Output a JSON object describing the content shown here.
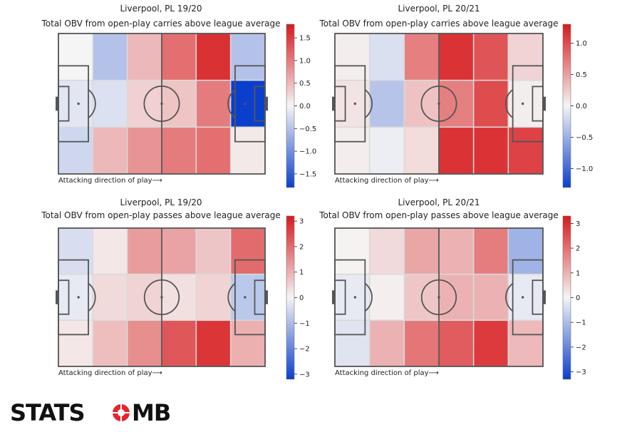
{
  "chart_data": [
    {
      "type": "heatmap",
      "title": "Liverpool, PL 19/20",
      "subtitle": "Total OBV from open-play carries above league average",
      "caption": "Attacking direction of play⟶",
      "grid_rows": 3,
      "grid_cols": 6,
      "values": [
        [
          0.0,
          -0.5,
          0.5,
          1.1,
          1.6,
          -0.5
        ],
        [
          -0.15,
          -0.2,
          0.3,
          0.4,
          1.0,
          -1.8
        ],
        [
          -0.3,
          0.5,
          0.8,
          1.0,
          1.1,
          0.1
        ]
      ],
      "colorbar": {
        "range": [
          -1.8,
          1.8
        ],
        "ticks": [
          1.5,
          1.0,
          0.5,
          0.0,
          -0.5,
          -1.0,
          -1.5
        ],
        "tick_labels": [
          "1.5",
          "1.0",
          "0.5",
          "0.0",
          "−0.5",
          "−1.0",
          "−1.5"
        ]
      }
    },
    {
      "type": "heatmap",
      "title": "Liverpool, PL 20/21",
      "subtitle": "Total OBV from open-play carries above league average",
      "caption": "Attacking direction of play⟶",
      "grid_rows": 3,
      "grid_cols": 6,
      "values": [
        [
          0.05,
          -0.15,
          0.7,
          1.15,
          0.95,
          0.2
        ],
        [
          0.1,
          -0.35,
          0.3,
          0.7,
          1.0,
          0.05
        ],
        [
          0.05,
          -0.05,
          0.15,
          1.15,
          1.15,
          1.05
        ]
      ],
      "colorbar": {
        "range": [
          -1.3,
          1.3
        ],
        "ticks": [
          1.0,
          0.5,
          0.0,
          -0.5,
          -1.0
        ],
        "tick_labels": [
          "1.0",
          "0.5",
          "0.0",
          "−0.5",
          "−1.0"
        ]
      }
    },
    {
      "type": "heatmap",
      "title": "Liverpool, PL 19/20",
      "subtitle": "Total OBV from open-play passes above league average",
      "caption": "Attacking direction of play⟶",
      "grid_rows": 3,
      "grid_cols": 6,
      "values": [
        [
          -0.4,
          0.2,
          1.3,
          1.2,
          0.7,
          2.0
        ],
        [
          -0.2,
          0.4,
          0.5,
          0.3,
          0.5,
          -0.8
        ],
        [
          0.2,
          0.8,
          1.5,
          2.3,
          2.8,
          1.0
        ]
      ],
      "colorbar": {
        "range": [
          -3.2,
          3.2
        ],
        "ticks": [
          3,
          2,
          1,
          0,
          -1,
          -2,
          -3
        ],
        "tick_labels": [
          "3",
          "2",
          "1",
          "0",
          "−1",
          "−2",
          "−3"
        ]
      }
    },
    {
      "type": "heatmap",
      "title": "Liverpool, PL 20/21",
      "subtitle": "Total OBV from open-play passes above league average",
      "caption": "Attacking direction of play⟶",
      "grid_rows": 3,
      "grid_cols": 6,
      "values": [
        [
          0.05,
          0.4,
          1.2,
          1.0,
          1.8,
          -1.2
        ],
        [
          -0.2,
          0.1,
          0.7,
          1.0,
          1.0,
          -0.2
        ],
        [
          -0.3,
          1.0,
          1.9,
          2.3,
          2.8,
          0.9
        ]
      ],
      "colorbar": {
        "range": [
          -3.3,
          3.3
        ],
        "ticks": [
          3,
          2,
          1,
          0,
          -1,
          -2,
          -3
        ],
        "tick_labels": [
          "3",
          "2",
          "1",
          "0",
          "−1",
          "−2",
          "−3"
        ]
      }
    }
  ],
  "colors": {
    "low": "#0a3fcc",
    "mid": "#f5f5f5",
    "high": "#d7191c",
    "pitch_line": "#555555"
  },
  "logo": {
    "left": "STATS",
    "right": "MB",
    "bomb_letter": "O"
  }
}
